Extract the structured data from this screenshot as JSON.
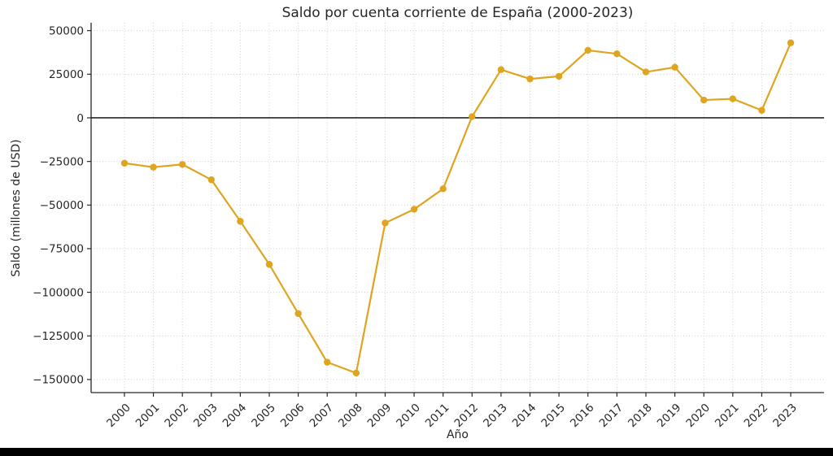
{
  "chart_data": {
    "type": "line",
    "title": "Saldo por cuenta corriente de España (2000-2023)",
    "xlabel": "Año",
    "ylabel": "Saldo (millones de USD)",
    "categories": [
      2000,
      2001,
      2002,
      2003,
      2004,
      2005,
      2006,
      2007,
      2008,
      2009,
      2010,
      2011,
      2012,
      2013,
      2014,
      2015,
      2016,
      2017,
      2018,
      2019,
      2020,
      2021,
      2022,
      2023
    ],
    "xtick_labels": [
      "2000",
      "2001",
      "2002",
      "2003",
      "2004",
      "2005",
      "2006",
      "2007",
      "2008",
      "2009",
      "2010",
      "2011",
      "2012",
      "2013",
      "2014",
      "2015",
      "2016",
      "2017",
      "2018",
      "2019",
      "2020",
      "2021",
      "2022",
      "2023"
    ],
    "series": [
      {
        "name": "Saldo por cuenta corriente",
        "values": [
          -26000,
          -28300,
          -26700,
          -35500,
          -59300,
          -84000,
          -112200,
          -140100,
          -146300,
          -60300,
          -52400,
          -40700,
          700,
          27600,
          22300,
          23800,
          38700,
          36700,
          26300,
          29000,
          10200,
          10900,
          4300,
          43000
        ]
      }
    ],
    "yticks": [
      50000,
      25000,
      0,
      -25000,
      -50000,
      -75000,
      -100000,
      -125000,
      -150000
    ],
    "ytick_labels": [
      "50000",
      "25000",
      "0",
      "−25000",
      "−50000",
      "−75000",
      "−100000",
      "−125000",
      "−150000"
    ],
    "xlim": [
      1998.85,
      2024.15
    ],
    "ylim": [
      -157500,
      54500
    ],
    "grid": true,
    "grid_style": "dotted",
    "zero_line": true,
    "legend": false,
    "marker": "circle"
  },
  "colors": {
    "series": "#DFA520",
    "grid": "#cfcfcf",
    "axis": "#262626",
    "tick_text": "#262626",
    "zero_line": "#000000",
    "bottom_bar": "#000000",
    "background": "#ffffff"
  }
}
